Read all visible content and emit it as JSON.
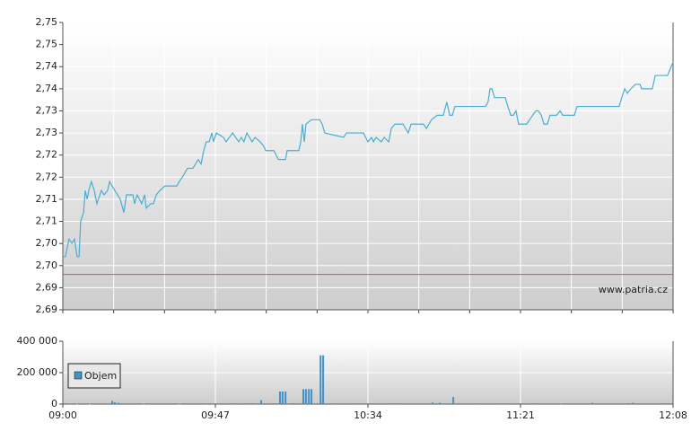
{
  "chart_data": [
    {
      "type": "line",
      "ylim": [
        2.69,
        2.755
      ],
      "yticks": [
        {
          "value": 2.69,
          "label": "2,69"
        },
        {
          "value": 2.695,
          "label": "2,69"
        },
        {
          "value": 2.7,
          "label": "2,70"
        },
        {
          "value": 2.705,
          "label": "2,70"
        },
        {
          "value": 2.71,
          "label": "2,71"
        },
        {
          "value": 2.715,
          "label": "2,71"
        },
        {
          "value": 2.72,
          "label": "2,72"
        },
        {
          "value": 2.725,
          "label": "2,72"
        },
        {
          "value": 2.73,
          "label": "2,73"
        },
        {
          "value": 2.735,
          "label": "2,73"
        },
        {
          "value": 2.74,
          "label": "2,74"
        },
        {
          "value": 2.745,
          "label": "2,74"
        },
        {
          "value": 2.75,
          "label": "2,75"
        },
        {
          "value": 2.755,
          "label": "2,75"
        }
      ],
      "xlim": [
        0,
        188
      ],
      "grid": true,
      "reference_line": {
        "value": 2.698,
        "color": "#d9534f"
      },
      "watermark": "www.patria.cz",
      "series": [
        {
          "color": "#4aaed0",
          "x": [
            0.0,
            0.8,
            1.9,
            2.8,
            3.6,
            4.4,
            5.0,
            5.5,
            6.4,
            6.9,
            7.5,
            8.0,
            8.8,
            9.7,
            10.5,
            11.9,
            12.7,
            13.8,
            14.4,
            15.2,
            16.0,
            17.7,
            18.8,
            19.6,
            21.6,
            22.1,
            22.9,
            24.3,
            25.2,
            25.7,
            27.1,
            27.9,
            28.8,
            29.9,
            31.5,
            35.1,
            35.9,
            36.8,
            37.6,
            38.4,
            40.1,
            40.9,
            41.7,
            42.6,
            43.4,
            44.2,
            45.1,
            45.9,
            46.4,
            47.3,
            49.5,
            50.3,
            52.3,
            54.2,
            55.0,
            55.8,
            56.7,
            58.3,
            59.2,
            60.8,
            61.9,
            62.5,
            65.0,
            66.4,
            68.6,
            69.1,
            70.5,
            72.7,
            73.3,
            73.8,
            74.4,
            74.9,
            76.6,
            79.1,
            79.9,
            80.7,
            86.5,
            87.4,
            89.9,
            92.6,
            94.0,
            95.1,
            95.7,
            96.5,
            98.1,
            99.0,
            100.4,
            101.2,
            102.3,
            104.8,
            106.4,
            107.3,
            108.1,
            111.1,
            112.0,
            112.8,
            113.6,
            115.3,
            117.2,
            118.3,
            119.2,
            120.0,
            120.8,
            122.5,
            129.4,
            130.2,
            131.0,
            131.6,
            132.2,
            133.0,
            136.3,
            137.1,
            138.0,
            138.8,
            139.6,
            140.4,
            142.9,
            143.8,
            145.7,
            146.5,
            147.4,
            148.2,
            149.3,
            150.1,
            152.1,
            153.2,
            154.0,
            157.6,
            158.4,
            171.4,
            172.2,
            173.1,
            173.9,
            175.0,
            176.4,
            177.8,
            178.3,
            181.6,
            182.5,
            186.3,
            187.4,
            188.0
          ],
          "values": [
            2.702,
            2.702,
            2.706,
            2.705,
            2.706,
            2.702,
            2.702,
            2.71,
            2.712,
            2.717,
            2.715,
            2.717,
            2.719,
            2.717,
            2.714,
            2.717,
            2.716,
            2.717,
            2.719,
            2.718,
            2.717,
            2.715,
            2.712,
            2.716,
            2.716,
            2.714,
            2.716,
            2.714,
            2.716,
            2.713,
            2.714,
            2.714,
            2.716,
            2.717,
            2.718,
            2.718,
            2.719,
            2.72,
            2.721,
            2.722,
            2.722,
            2.723,
            2.724,
            2.723,
            2.726,
            2.728,
            2.728,
            2.73,
            2.728,
            2.73,
            2.729,
            2.728,
            2.73,
            2.728,
            2.729,
            2.728,
            2.73,
            2.728,
            2.729,
            2.728,
            2.727,
            2.726,
            2.726,
            2.724,
            2.724,
            2.726,
            2.726,
            2.726,
            2.728,
            2.732,
            2.728,
            2.732,
            2.733,
            2.733,
            2.732,
            2.73,
            2.729,
            2.73,
            2.73,
            2.73,
            2.728,
            2.729,
            2.728,
            2.729,
            2.728,
            2.729,
            2.728,
            2.731,
            2.732,
            2.732,
            2.73,
            2.732,
            2.732,
            2.732,
            2.731,
            2.732,
            2.733,
            2.734,
            2.734,
            2.737,
            2.734,
            2.734,
            2.736,
            2.736,
            2.736,
            2.736,
            2.737,
            2.74,
            2.74,
            2.738,
            2.738,
            2.736,
            2.734,
            2.734,
            2.735,
            2.732,
            2.732,
            2.733,
            2.735,
            2.735,
            2.734,
            2.732,
            2.732,
            2.734,
            2.734,
            2.735,
            2.734,
            2.734,
            2.736,
            2.736,
            2.738,
            2.74,
            2.739,
            2.74,
            2.741,
            2.741,
            2.74,
            2.74,
            2.743,
            2.743,
            2.745,
            2.746
          ]
        }
      ]
    },
    {
      "type": "bar",
      "ylim": [
        0,
        400000
      ],
      "yticks": [
        0,
        {
          "value": 200000,
          "label": "200 000"
        },
        {
          "value": 400000,
          "label": "400 000"
        }
      ],
      "xlim": [
        0,
        188
      ],
      "xticks": [
        {
          "value": 0,
          "label": "09:00"
        },
        {
          "value": 47,
          "label": "09:47"
        },
        {
          "value": 94,
          "label": "10:34"
        },
        {
          "value": 141,
          "label": "11:21"
        },
        {
          "value": 188,
          "label": "12:08"
        }
      ],
      "grid": true,
      "legend": "upper left",
      "series": [
        {
          "name": "Objem",
          "color": "#3f93c8",
          "x": [
            0.6,
            2.2,
            4.4,
            8.3,
            15.2,
            16.0,
            17.1,
            24.9,
            35.9,
            44.2,
            53.1,
            58.1,
            61.1,
            65.0,
            66.9,
            67.7,
            68.6,
            70.8,
            74.1,
            74.9,
            75.8,
            76.6,
            79.4,
            80.2,
            83.5,
            91.2,
            102.3,
            113.9,
            116.1,
            120.3,
            127.2,
            135.5,
            145.1,
            153.4,
            163.1,
            174.2,
            175.6,
            185.2
          ],
          "values": [
            5000,
            4000,
            3000,
            3000,
            20000,
            12000,
            8000,
            3000,
            3000,
            4000,
            5000,
            6000,
            25000,
            5000,
            80000,
            80000,
            80000,
            6000,
            95000,
            95000,
            95000,
            95000,
            310000,
            310000,
            5000,
            4000,
            6000,
            10000,
            8000,
            45000,
            5000,
            4000,
            5000,
            4000,
            8000,
            6000,
            8000,
            5000
          ]
        }
      ]
    }
  ]
}
